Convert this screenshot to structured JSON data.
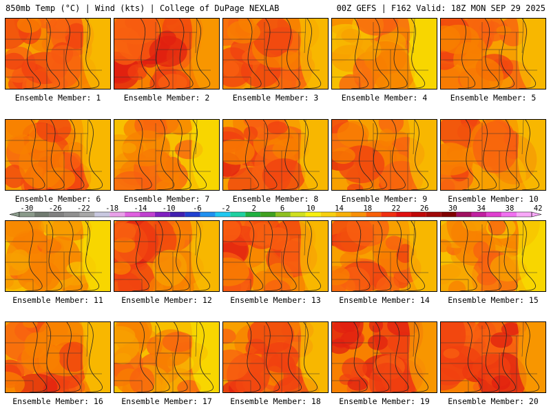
{
  "header": {
    "title_left": "850mb Temp (°C) | Wind (kts) | College of DuPage NEXLAB",
    "title_right": "00Z GEFS | F162 Valid: 18Z MON SEP 29 2025"
  },
  "panels": [
    {
      "label": "Ensemble Member: 1",
      "warm": 0.55
    },
    {
      "label": "Ensemble Member: 2",
      "warm": 0.85
    },
    {
      "label": "Ensemble Member: 3",
      "warm": 0.55
    },
    {
      "label": "Ensemble Member: 4",
      "warm": 0.35
    },
    {
      "label": "Ensemble Member: 5",
      "warm": 0.7
    },
    {
      "label": "Ensemble Member: 6",
      "warm": 0.6
    },
    {
      "label": "Ensemble Member: 7",
      "warm": 0.45
    },
    {
      "label": "Ensemble Member: 8",
      "warm": 0.7
    },
    {
      "label": "Ensemble Member: 9",
      "warm": 0.65
    },
    {
      "label": "Ensemble Member: 10",
      "warm": 0.55
    },
    {
      "label": "Ensemble Member: 11",
      "warm": 0.4
    },
    {
      "label": "Ensemble Member: 12",
      "warm": 0.6
    },
    {
      "label": "Ensemble Member: 13",
      "warm": 0.65
    },
    {
      "label": "Ensemble Member: 14",
      "warm": 0.6
    },
    {
      "label": "Ensemble Member: 15",
      "warm": 0.4
    },
    {
      "label": "Ensemble Member: 16",
      "warm": 0.6
    },
    {
      "label": "Ensemble Member: 17",
      "warm": 0.45
    },
    {
      "label": "Ensemble Member: 18",
      "warm": 0.8
    },
    {
      "label": "Ensemble Member: 19",
      "warm": 0.9
    },
    {
      "label": "Ensemble Member: 20",
      "warm": 0.85
    }
  ],
  "colorbar": {
    "labels": [
      "-30",
      "-26",
      "-22",
      "-18",
      "-14",
      "-10",
      "-6",
      "-2",
      "2",
      "6",
      "10",
      "14",
      "18",
      "22",
      "26",
      "30",
      "34",
      "38",
      "42"
    ],
    "colors": [
      "#8a9a8a",
      "#707a70",
      "#808080",
      "#909090",
      "#a8a8a8",
      "#c8c8e0",
      "#e8a0e8",
      "#e060e0",
      "#c040d0",
      "#8020c0",
      "#4020b0",
      "#2040d0",
      "#2090f0",
      "#20c8f0",
      "#20d0a0",
      "#20b040",
      "#40a020",
      "#90c020",
      "#d0e020",
      "#f8f010",
      "#f8d010",
      "#f8b008",
      "#f89008",
      "#f86008",
      "#f03010",
      "#e01010",
      "#c00808",
      "#a00808",
      "#800000",
      "#a01060",
      "#c020a0",
      "#e040d0",
      "#f070f0",
      "#f8a8f8"
    ]
  }
}
